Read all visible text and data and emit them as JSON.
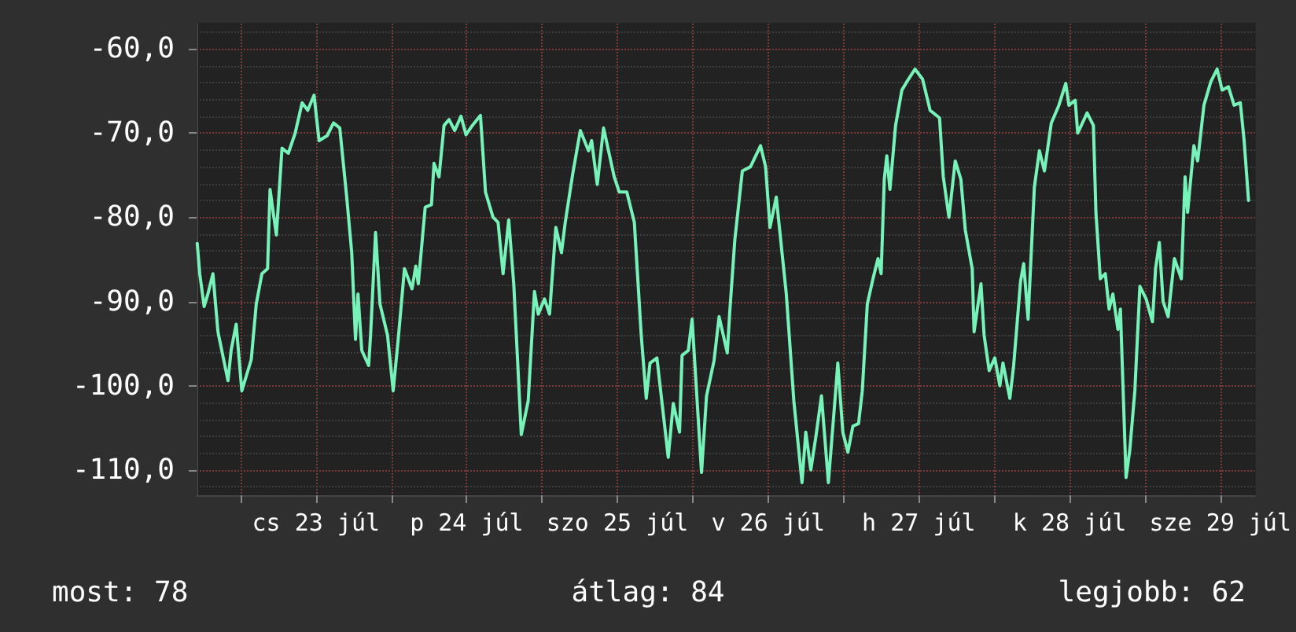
{
  "chart_data": {
    "type": "line",
    "xlim": [
      "--07-22T17:00",
      "--07-29T17:30"
    ],
    "ylim": [
      -113,
      -57
    ],
    "xticks": [
      {
        "value": "--07-23T00:00",
        "label": null
      },
      {
        "value": "--07-23T12:00",
        "label": "cs 23 júl"
      },
      {
        "value": "--07-24T00:00",
        "label": null
      },
      {
        "value": "--07-24T12:00",
        "label": "p 24 júl"
      },
      {
        "value": "--07-25T00:00",
        "label": null
      },
      {
        "value": "--07-25T12:00",
        "label": "szo 25 júl"
      },
      {
        "value": "--07-26T00:00",
        "label": null
      },
      {
        "value": "--07-26T12:00",
        "label": "v 26 júl"
      },
      {
        "value": "--07-27T00:00",
        "label": null
      },
      {
        "value": "--07-27T12:00",
        "label": "h 27 júl"
      },
      {
        "value": "--07-28T00:00",
        "label": null
      },
      {
        "value": "--07-28T12:00",
        "label": "k 28 júl"
      },
      {
        "value": "--07-29T00:00",
        "label": null
      },
      {
        "value": "--07-29T12:00",
        "label": "sze 29 júl"
      }
    ],
    "yticks": [
      {
        "value": -110,
        "label": "-110,0"
      },
      {
        "value": -100,
        "label": "-100,0"
      },
      {
        "value": -90,
        "label": "-90,0"
      },
      {
        "value": -80,
        "label": "-80,0"
      },
      {
        "value": -70,
        "label": "-70,0"
      },
      {
        "value": -60,
        "label": "-60,0"
      }
    ],
    "grid": true,
    "marker": "none",
    "line_style": "solid",
    "annotations": [
      "most: 78",
      "átlag: 84",
      "legjobb: 62"
    ],
    "series": [
      {
        "color": "#77f2b8",
        "x": [
          "--07-22T17:06",
          "--07-22T17:30",
          "--07-22T18:12",
          "--07-22T18:48",
          "--07-22T19:36",
          "--07-22T20:24",
          "--07-22T22:00",
          "--07-22T22:30",
          "--07-22T23:18",
          "--07-23T00:12",
          "--07-23T01:42",
          "--07-23T02:30",
          "--07-23T03:24",
          "--07-23T04:18",
          "--07-23T04:42",
          "--07-23T05:42",
          "--07-23T06:36",
          "--07-23T07:36",
          "--07-23T08:42",
          "--07-23T09:48",
          "--07-23T10:42",
          "--07-23T11:42",
          "--07-23T12:30",
          "--07-23T13:48",
          "--07-23T14:48",
          "--07-23T15:48",
          "--07-23T16:54",
          "--07-23T17:42",
          "--07-23T18:18",
          "--07-23T18:42",
          "--07-23T19:18",
          "--07-23T20:24",
          "--07-23T20:42",
          "--07-23T21:30",
          "--07-23T22:12",
          "--07-23T23:24",
          "--07-24T00:18",
          "--07-24T01:06",
          "--07-24T02:06",
          "--07-24T03:18",
          "--07-24T03:54",
          "--07-24T04:18",
          "--07-24T05:24",
          "--07-24T06:24",
          "--07-24T06:48",
          "--07-24T07:36",
          "--07-24T08:24",
          "--07-24T09:12",
          "--07-24T10:06",
          "--07-24T11:06",
          "--07-24T11:54",
          "--07-24T12:54",
          "--07-24T14:12",
          "--07-24T15:00",
          "--07-24T16:12",
          "--07-24T17:00",
          "--07-24T17:48",
          "--07-24T18:42",
          "--07-24T19:30",
          "--07-24T20:42",
          "--07-24T21:48",
          "--07-24T22:48",
          "--07-24T23:24",
          "--07-25T00:24",
          "--07-25T01:12",
          "--07-25T02:12",
          "--07-25T03:06",
          "--07-25T03:42",
          "--07-25T04:54",
          "--07-25T06:06",
          "--07-25T07:24",
          "--07-25T07:54",
          "--07-25T08:48",
          "--07-25T09:48",
          "--07-25T11:30",
          "--07-25T12:18",
          "--07-25T13:30",
          "--07-25T14:42",
          "--07-25T15:48",
          "--07-25T16:36",
          "--07-25T17:12",
          "--07-25T18:18",
          "--07-25T18:48",
          "--07-25T20:06",
          "--07-25T20:54",
          "--07-25T21:54",
          "--07-25T22:18",
          "--07-25T23:18",
          "--07-25T23:54",
          "--07-26T01:24",
          "--07-26T02:12",
          "--07-26T03:24",
          "--07-26T04:12",
          "--07-26T05:30",
          "--07-26T05:54",
          "--07-26T06:42",
          "--07-26T07:54",
          "--07-26T09:12",
          "--07-26T10:48",
          "--07-26T11:36",
          "--07-26T12:18",
          "--07-26T13:18",
          "--07-26T14:54",
          "--07-26T16:06",
          "--07-26T17:24",
          "--07-26T18:00",
          "--07-26T18:48",
          "--07-26T19:36",
          "--07-26T20:30",
          "--07-26T21:36",
          "--07-26T22:42",
          "--07-26T23:06",
          "--07-26T23:54",
          "--07-27T00:42",
          "--07-27T01:30",
          "--07-27T02:24",
          "--07-27T03:00",
          "--07-27T03:48",
          "--07-27T04:42",
          "--07-27T05:30",
          "--07-27T06:00",
          "--07-27T06:30",
          "--07-27T06:54",
          "--07-27T07:24",
          "--07-27T08:18",
          "--07-27T09:18",
          "--07-27T10:06",
          "--07-27T11:24",
          "--07-27T12:36",
          "--07-27T13:48",
          "--07-27T15:18",
          "--07-27T15:54",
          "--07-27T16:48",
          "--07-27T17:48",
          "--07-27T18:42",
          "--07-27T19:24",
          "--07-27T20:30",
          "--07-27T20:48",
          "--07-27T21:54",
          "--07-27T22:24",
          "--07-27T23:12",
          "--07-28T00:06",
          "--07-28T00:54",
          "--07-28T01:24",
          "--07-28T02:30",
          "--07-28T03:06",
          "--07-28T04:12",
          "--07-28T04:42",
          "--07-28T05:24",
          "--07-28T06:24",
          "--07-28T07:12",
          "--07-28T08:00",
          "--07-28T09:06",
          "--07-28T10:18",
          "--07-28T11:24",
          "--07-28T11:54",
          "--07-28T12:54",
          "--07-28T13:18",
          "--07-28T14:48",
          "--07-28T15:48",
          "--07-28T16:12",
          "--07-28T16:54",
          "--07-28T17:42",
          "--07-28T18:18",
          "--07-28T18:54",
          "--07-28T19:42",
          "--07-28T20:06",
          "--07-28T21:00",
          "--07-28T21:36",
          "--07-28T22:24",
          "--07-28T23:12",
          "--07-29T00:12",
          "--07-29T01:12",
          "--07-29T01:42",
          "--07-29T02:18",
          "--07-29T02:54",
          "--07-29T03:42",
          "--07-29T04:42",
          "--07-29T05:48",
          "--07-29T06:24",
          "--07-29T06:48",
          "--07-29T07:48",
          "--07-29T08:24",
          "--07-29T09:24",
          "--07-29T10:30",
          "--07-29T11:30",
          "--07-29T12:18",
          "--07-29T13:18",
          "--07-29T14:12",
          "--07-29T15:12",
          "--07-29T15:48",
          "--07-29T16:30"
        ],
        "values": [
          -83.1,
          -86.7,
          -90.6,
          -89.1,
          -86.7,
          -93.6,
          -99.4,
          -95.8,
          -92.7,
          -100.6,
          -96.9,
          -90.3,
          -86.7,
          -86.1,
          -76.7,
          -82.1,
          -71.8,
          -72.4,
          -70,
          -66.4,
          -67.3,
          -65.5,
          -70.9,
          -70.3,
          -68.8,
          -69.4,
          -77.6,
          -84.2,
          -94.5,
          -89.1,
          -95.8,
          -97.6,
          -94,
          -81.8,
          -90.3,
          -94,
          -100.6,
          -94.5,
          -86.1,
          -88.5,
          -85.8,
          -87.9,
          -78.8,
          -78.5,
          -73.6,
          -75.2,
          -69.1,
          -68.4,
          -69.7,
          -68,
          -70.2,
          -69.1,
          -67.9,
          -77,
          -80,
          -80.6,
          -86.7,
          -80.3,
          -87.9,
          -105.8,
          -101.8,
          -88.8,
          -91.5,
          -89.7,
          -91.5,
          -81.2,
          -84.2,
          -80.6,
          -74.8,
          -69.7,
          -72.1,
          -70.9,
          -76.1,
          -69.4,
          -75.2,
          -77,
          -77,
          -80.6,
          -94,
          -101.5,
          -97.3,
          -96.7,
          -100,
          -108.5,
          -102.1,
          -105.5,
          -96.4,
          -95.8,
          -92.1,
          -110.3,
          -101.2,
          -97,
          -91.8,
          -96.1,
          -91.2,
          -82.7,
          -74.5,
          -74,
          -71.5,
          -74,
          -81.2,
          -77.6,
          -89.1,
          -101.8,
          -111.5,
          -105.5,
          -110,
          -106.1,
          -101.2,
          -111.5,
          -101.2,
          -97.3,
          -105.5,
          -107.9,
          -104.8,
          -104.5,
          -100.6,
          -90.3,
          -87.3,
          -84.9,
          -86.7,
          -75.5,
          -72.7,
          -76.7,
          -69.1,
          -64.9,
          -63.9,
          -62.4,
          -63.6,
          -67.3,
          -68.2,
          -75.2,
          -80,
          -73.3,
          -75.5,
          -81.5,
          -86.1,
          -93.6,
          -87.9,
          -94,
          -98.2,
          -96.7,
          -100,
          -97.3,
          -101.5,
          -97.6,
          -87.6,
          -85.5,
          -92.1,
          -76.4,
          -72.1,
          -74.5,
          -68.8,
          -66.7,
          -64.1,
          -66.7,
          -66.1,
          -70,
          -67.6,
          -69.1,
          -79.4,
          -87.3,
          -86.7,
          -90.9,
          -89.1,
          -93.3,
          -90.9,
          -110.9,
          -107.6,
          -100.6,
          -88.2,
          -89.7,
          -92.4,
          -86.1,
          -83,
          -90,
          -91.8,
          -84.9,
          -87.3,
          -75.2,
          -79.4,
          -71.5,
          -73.3,
          -66.7,
          -63.9,
          -62.4,
          -64.9,
          -64.5,
          -66.7,
          -66.4,
          -70.9,
          -78
        ]
      }
    ]
  }
}
